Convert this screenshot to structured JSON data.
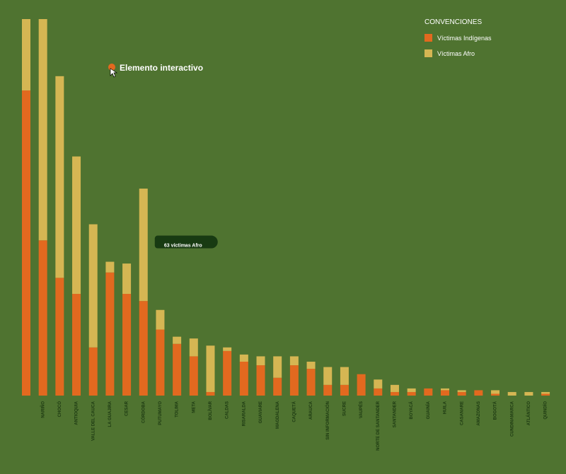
{
  "chart_data": {
    "type": "stacked-bar",
    "legend_title": "CONVENCIONES",
    "annotation": "Elemento interactivo",
    "tooltip": "63 víctimas Afro",
    "categories": [
      null,
      "NARIÑO",
      "CHOCÓ",
      "ANTIOQUIA",
      "VALLE DEL CAUCA",
      "LA GUAJIRA",
      "CESAR",
      "CÓRDOBA",
      "PUTUMAYO",
      "TOLIMA",
      "META",
      "BOLÍVAR",
      "CALDAS",
      "RISARALDA",
      "GUAVIARE",
      "MAGDALENA",
      "CAQUETÁ",
      "ARAUCA",
      "SIN INFORMACIÓN",
      "SUCRE",
      "VAUPÉS",
      "NORTE DE SANTANDER",
      "SANTANDER",
      "BOYACÁ",
      "GUAINÍA",
      "HUILA",
      "CASANARE",
      "AMAZONAS",
      "BOGOTÁ",
      "CUNDINAMARCA",
      "ATLÁNTICO",
      "QUINDÍO"
    ],
    "series": [
      {
        "name": "Víctimas Indígenas",
        "color": "#e2691f",
        "values": [
          171,
          87,
          66,
          57,
          27,
          69,
          57,
          53,
          37,
          29,
          22,
          2,
          25,
          19,
          17,
          10,
          17,
          15,
          6,
          6,
          12,
          4,
          2,
          2,
          4,
          3,
          2,
          3,
          1,
          0,
          0,
          1
        ]
      },
      {
        "name": "Víctimas Afro",
        "color": "#d5b653",
        "values": [
          40,
          124,
          113,
          77,
          69,
          6,
          17,
          63,
          11,
          4,
          10,
          26,
          2,
          4,
          5,
          12,
          5,
          4,
          10,
          10,
          0,
          5,
          4,
          2,
          0,
          1,
          1,
          0,
          2,
          2,
          2,
          1
        ]
      }
    ]
  }
}
